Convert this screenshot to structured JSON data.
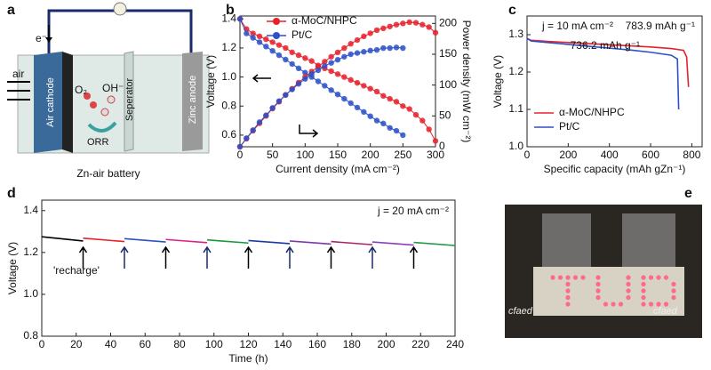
{
  "panel_labels": [
    "a",
    "b",
    "c",
    "d",
    "e"
  ],
  "diagram": {
    "electron": "e⁻",
    "air": "air",
    "o2": "O₂",
    "oh": "OH⁻",
    "orr": "ORR",
    "separator": "Seperator",
    "cathode": "Air cathode",
    "anode": "Zinc anode",
    "caption": "Zn-air battery"
  },
  "photo": {
    "logos": [
      "cfaed",
      "cfaed"
    ]
  },
  "chart_data": [
    {
      "type": "line",
      "xlabel": "Current density (mA cm⁻²)",
      "ylabel": "Voltage (V)",
      "y2label": "Power density (mW cm⁻²)",
      "xlim": [
        0,
        300
      ],
      "xticks": [
        0,
        50,
        100,
        150,
        200,
        250,
        300
      ],
      "ylim": [
        0.52,
        1.42
      ],
      "yticks": [
        0.6,
        0.8,
        {
          "value": 1,
          "label": "1.0"
        },
        1.2,
        1.4
      ],
      "y2lim": [
        0,
        212
      ],
      "y2ticks": [
        0,
        50,
        100,
        150,
        200
      ],
      "markers": true,
      "legend": "top",
      "x": [
        0,
        10,
        20,
        30,
        40,
        50,
        60,
        70,
        80,
        90,
        100,
        110,
        120,
        130,
        140,
        150,
        160,
        170,
        180,
        190,
        200,
        210,
        220,
        230,
        240,
        250,
        260,
        270,
        280,
        290,
        300
      ],
      "series": [
        {
          "name": "α-MoC/NHPC",
          "color": "#e8202a",
          "values": [
            1.4,
            1.33,
            1.3,
            1.28,
            1.26,
            1.24,
            1.22,
            1.2,
            1.17,
            1.15,
            1.13,
            1.11,
            1.08,
            1.06,
            1.04,
            1.02,
            1.0,
            0.98,
            0.96,
            0.94,
            0.92,
            0.9,
            0.87,
            0.85,
            0.83,
            0.8,
            0.78,
            0.74,
            0.7,
            0.64,
            0.56
          ]
        },
        {
          "name": "Pt/C",
          "color": "#2b50c8",
          "values": [
            1.4,
            1.3,
            1.27,
            1.24,
            1.21,
            1.18,
            1.15,
            1.12,
            1.09,
            1.06,
            1.03,
            1.0,
            0.97,
            0.94,
            0.91,
            0.88,
            0.85,
            0.82,
            0.79,
            0.76,
            0.73,
            0.7,
            0.68,
            0.65,
            0.63,
            0.6,
            null,
            null,
            null,
            null,
            null
          ]
        },
        {
          "color": "#e8202a",
          "axis": "y2",
          "values": [
            0,
            13,
            26,
            38,
            50,
            62,
            73,
            84,
            94,
            104,
            113,
            122,
            130,
            138,
            146,
            153,
            160,
            167,
            173,
            179,
            184,
            189,
            192,
            195,
            198,
            200,
            202,
            201,
            198,
            194,
            185
          ]
        },
        {
          "color": "#2b50c8",
          "axis": "y2",
          "values": [
            0,
            14,
            27,
            40,
            51,
            63,
            74,
            84,
            93,
            102,
            110,
            118,
            124,
            131,
            136,
            141,
            146,
            150,
            152,
            154,
            156,
            157,
            160,
            160,
            161,
            160,
            null,
            null,
            null,
            null,
            null
          ]
        }
      ]
    },
    {
      "type": "line",
      "xlabel": "Specific capacity (mAh gZn⁻¹)",
      "ylabel": "Voltage (V)",
      "xlim": [
        0,
        850
      ],
      "xticks": [
        0,
        200,
        400,
        600,
        800
      ],
      "ylim": [
        1.0,
        1.35
      ],
      "yticks": [
        {
          "value": 1,
          "label": "1.0"
        },
        1.1,
        1.2,
        1.3
      ],
      "legend": "lower left",
      "annotations": [
        "j = 10 mA cm⁻²",
        "783.9 mAh g⁻¹",
        "736.2 mAh g⁻¹"
      ],
      "series": [
        {
          "name": "α-MoC/NHPC",
          "color": "#e8202a",
          "x": [
            0,
            20,
            100,
            200,
            300,
            400,
            500,
            600,
            700,
            760,
            775,
            783.9
          ],
          "values": [
            1.29,
            1.285,
            1.282,
            1.279,
            1.276,
            1.273,
            1.27,
            1.267,
            1.263,
            1.258,
            1.24,
            1.16
          ]
        },
        {
          "name": "Pt/C",
          "color": "#2b50c8",
          "x": [
            0,
            20,
            100,
            200,
            300,
            400,
            500,
            600,
            700,
            730,
            736.2
          ],
          "values": [
            1.29,
            1.283,
            1.279,
            1.274,
            1.269,
            1.264,
            1.259,
            1.253,
            1.245,
            1.235,
            1.1
          ]
        }
      ]
    },
    {
      "type": "line",
      "xlabel": "Time (h)",
      "ylabel": "Voltage (V)",
      "xlim": [
        0,
        240
      ],
      "xticks": [
        0,
        20,
        40,
        60,
        80,
        100,
        120,
        140,
        160,
        180,
        200,
        220,
        240
      ],
      "ylim": [
        0.8,
        1.45
      ],
      "yticks": [
        0.8,
        {
          "value": 1,
          "label": "1.0"
        },
        1.2,
        1.4
      ],
      "annotations": [
        "j = 20 mA cm⁻²",
        "'recharge'"
      ],
      "arrows_x": [
        24,
        48,
        72,
        96,
        120,
        144,
        168,
        192,
        216
      ],
      "series": [
        {
          "color": "#000000",
          "x": [
            0,
            24
          ],
          "values": [
            1.275,
            1.255
          ]
        },
        {
          "color": "#e8202a",
          "x": [
            24,
            48
          ],
          "values": [
            1.268,
            1.252
          ]
        },
        {
          "color": "#2b50c8",
          "x": [
            48,
            72
          ],
          "values": [
            1.266,
            1.25
          ]
        },
        {
          "color": "#e0208a",
          "x": [
            72,
            96
          ],
          "values": [
            1.262,
            1.247
          ]
        },
        {
          "color": "#1a9a3a",
          "x": [
            96,
            120
          ],
          "values": [
            1.26,
            1.245
          ]
        },
        {
          "color": "#1a3aa0",
          "x": [
            120,
            144
          ],
          "values": [
            1.257,
            1.242
          ]
        },
        {
          "color": "#7a3ab0",
          "x": [
            144,
            168
          ],
          "values": [
            1.255,
            1.24
          ]
        },
        {
          "color": "#b0206a",
          "x": [
            168,
            192
          ],
          "values": [
            1.252,
            1.237
          ]
        },
        {
          "color": "#8a40c0",
          "x": [
            192,
            216
          ],
          "values": [
            1.25,
            1.235
          ]
        },
        {
          "color": "#2a9a4a",
          "x": [
            216,
            240
          ],
          "values": [
            1.248,
            1.233
          ]
        }
      ]
    }
  ]
}
